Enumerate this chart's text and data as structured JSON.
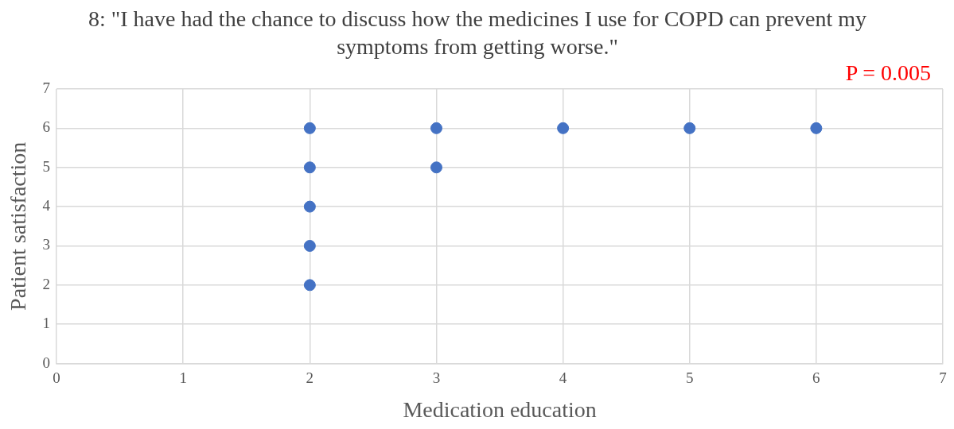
{
  "chart_data": {
    "type": "scatter",
    "title": "8: \"I have had the chance to discuss how the medicines I use for COPD can prevent my symptoms from getting worse.\"",
    "xlabel": "Medication education",
    "ylabel": "Patient satisfaction",
    "annotations": [
      "P = 0.005"
    ],
    "series": [
      {
        "color": "#4472c4",
        "x": [
          2,
          2,
          2,
          2,
          2,
          3,
          3,
          4,
          5,
          6
        ],
        "values": [
          6,
          5,
          4,
          3,
          2,
          6,
          5,
          6,
          6,
          6
        ]
      }
    ],
    "xlim": [
      0,
      7
    ],
    "xticks": [
      0,
      1,
      2,
      3,
      4,
      5,
      6,
      7
    ],
    "ylim": [
      0,
      7
    ],
    "yticks": [
      0,
      1,
      2,
      3,
      4,
      5,
      6,
      7
    ],
    "grid": true,
    "legend": false,
    "marker": "circle"
  }
}
